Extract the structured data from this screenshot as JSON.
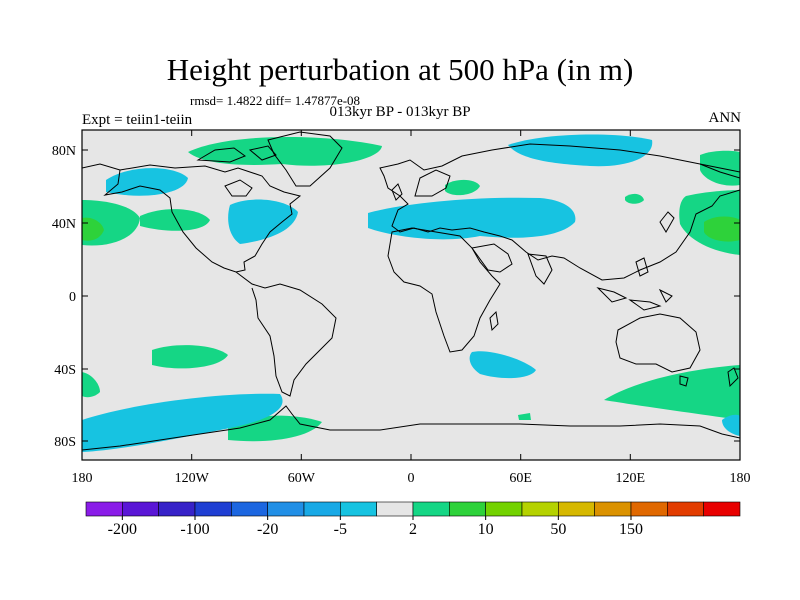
{
  "title": "Height perturbation at 500 hPa (in m)",
  "stats": "rmsd= 1.4822 diff= 1.47877e-08",
  "subtitle": "013kyr BP - 013kyr BP",
  "experiment": "Expt = teiin1-teiin",
  "season": "ANN",
  "lat_ticks": [
    "80N",
    "40N",
    "0",
    "40S",
    "80S"
  ],
  "lon_ticks": [
    "180",
    "120W",
    "60W",
    "0",
    "60E",
    "120E",
    "180"
  ],
  "colorbar": {
    "colors": [
      "#8a1ce8",
      "#5a16d6",
      "#3722c8",
      "#1f3fd3",
      "#1c66e0",
      "#218fe6",
      "#18a9e6",
      "#17c3e1",
      "#e6e6e6",
      "#15d685",
      "#2ed23a",
      "#73d200",
      "#b5d200",
      "#d6b800",
      "#db9200",
      "#e06800",
      "#e23c00",
      "#e80000"
    ],
    "labels": [
      "-200",
      "-100",
      "-20",
      "-5",
      "2",
      "10",
      "50",
      "150"
    ]
  },
  "colors": {
    "background": "#e6e6e6",
    "negative_shading": "#17c3e1",
    "positive_shading": "#15d685",
    "positive_strong": "#2ed23a"
  }
}
